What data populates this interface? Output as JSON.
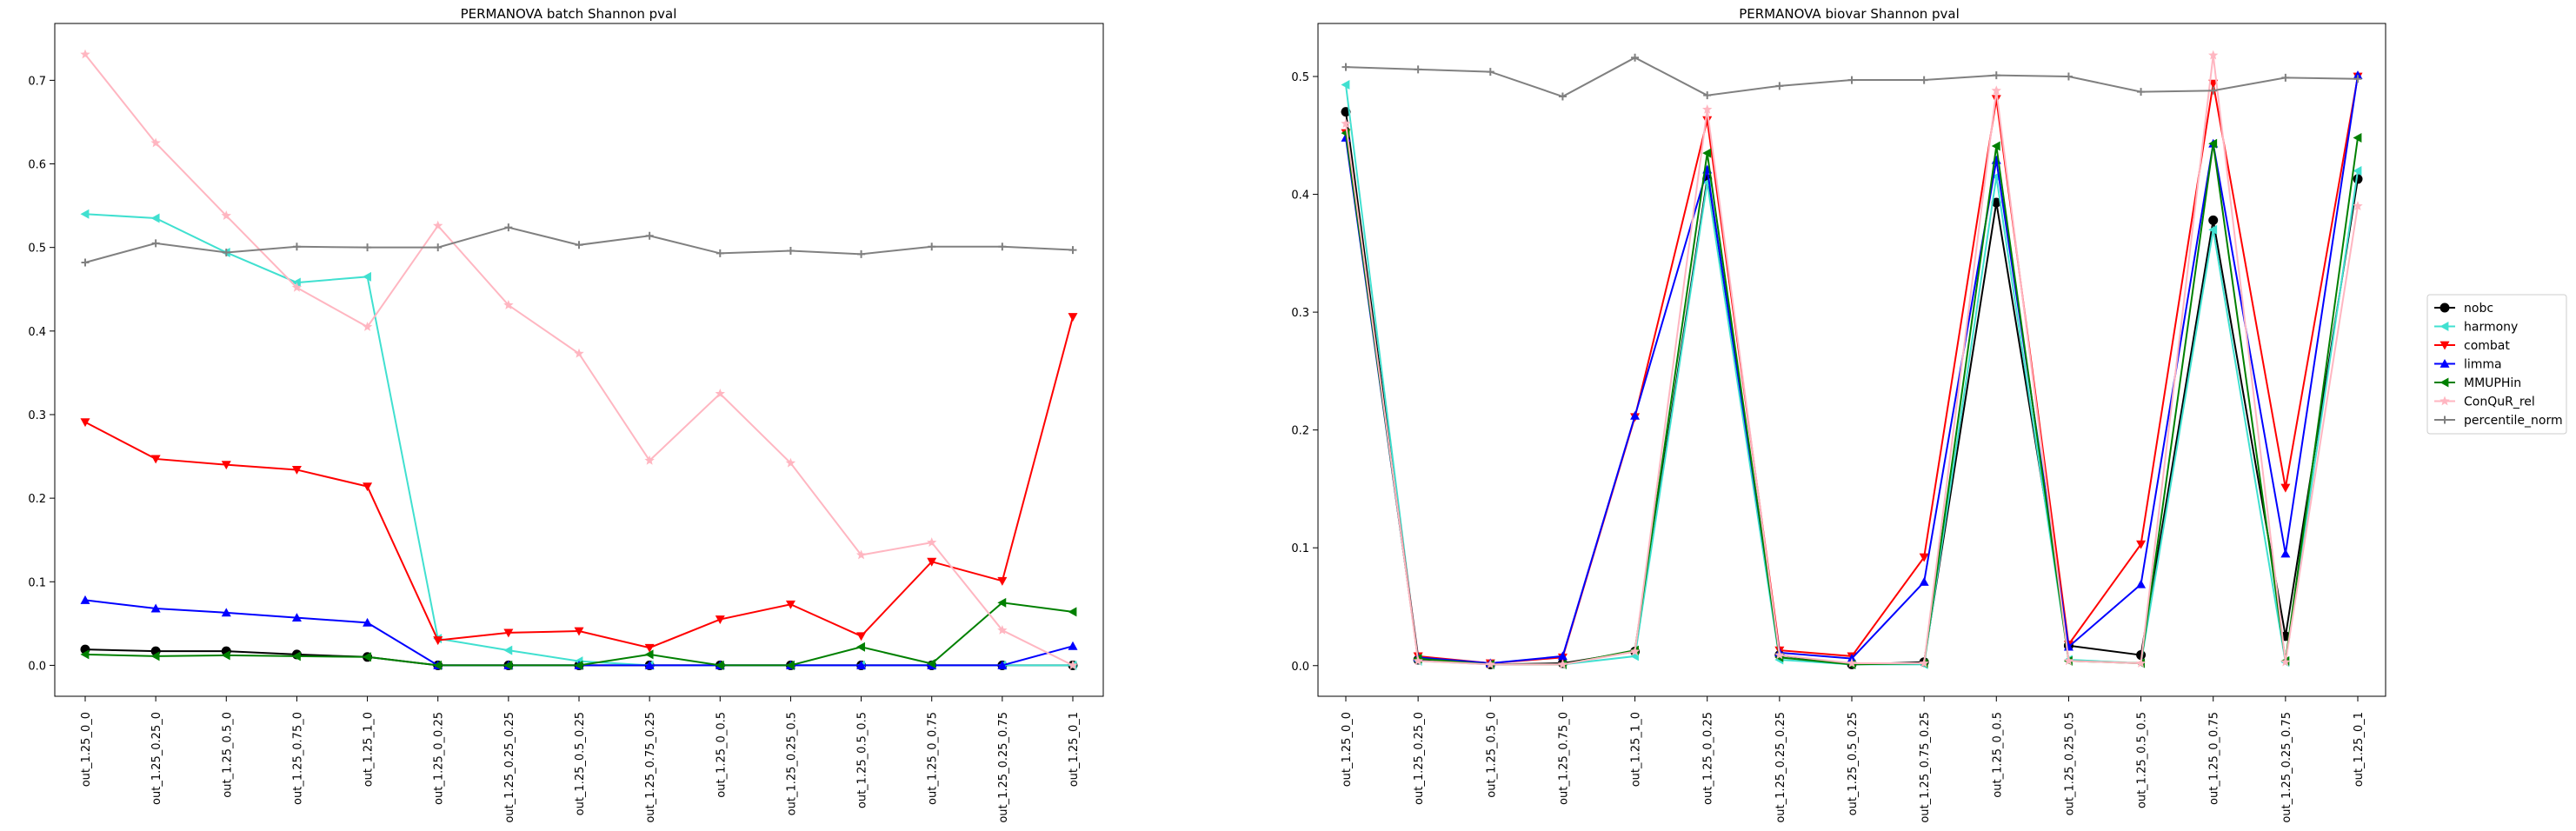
{
  "chart_data": [
    {
      "type": "line",
      "title": "PERMANOVA batch Shannon pval",
      "xlabel": "",
      "ylabel": "",
      "ylim": [
        -0.037,
        0.768
      ],
      "yticks": [
        0.0,
        0.1,
        0.2,
        0.3,
        0.4,
        0.5,
        0.6,
        0.7
      ],
      "ytick_labels": [
        "0.0",
        "0.1",
        "0.2",
        "0.3",
        "0.4",
        "0.5",
        "0.6",
        "0.7"
      ],
      "categories": [
        "out_1.25_0_0",
        "out_1.25_0.25_0",
        "out_1.25_0.5_0",
        "out_1.25_0.75_0",
        "out_1.25_1_0",
        "out_1.25_0_0.25",
        "out_1.25_0.25_0.25",
        "out_1.25_0.5_0.25",
        "out_1.25_0.75_0.25",
        "out_1.25_0_0.5",
        "out_1.25_0.25_0.5",
        "out_1.25_0.5_0.5",
        "out_1.25_0_0.75",
        "out_1.25_0.25_0.75",
        "out_1.25_0_1"
      ],
      "grid": false,
      "series": [
        {
          "name": "nobc",
          "color": "#000000",
          "marker": "circle",
          "values": [
            0.019,
            0.017,
            0.017,
            0.013,
            0.01,
            0.0,
            0.0,
            0.0,
            0.0,
            0.0,
            0.0,
            0.0,
            0.0,
            0.0,
            0.0
          ]
        },
        {
          "name": "harmony",
          "color": "#40e0d0",
          "marker": "triangle-left",
          "values": [
            0.54,
            0.535,
            0.494,
            0.458,
            0.465,
            0.032,
            0.018,
            0.005,
            0.0,
            0.0,
            0.0,
            0.0,
            0.0,
            0.0,
            0.0
          ]
        },
        {
          "name": "combat",
          "color": "#ff0000",
          "marker": "triangle-down",
          "values": [
            0.291,
            0.247,
            0.24,
            0.234,
            0.214,
            0.03,
            0.039,
            0.041,
            0.021,
            0.055,
            0.073,
            0.035,
            0.124,
            0.101,
            0.417
          ]
        },
        {
          "name": "limma",
          "color": "#0000ff",
          "marker": "triangle-up",
          "values": [
            0.078,
            0.068,
            0.063,
            0.057,
            0.051,
            0.0,
            0.0,
            0.0,
            0.0,
            0.0,
            0.0,
            0.0,
            0.0,
            0.0,
            0.023
          ]
        },
        {
          "name": "MMUPHin",
          "color": "#008000",
          "marker": "triangle-left",
          "values": [
            0.013,
            0.011,
            0.012,
            0.011,
            0.01,
            0.0,
            0.0,
            0.0,
            0.013,
            0.0,
            0.0,
            0.022,
            0.002,
            0.075,
            0.064
          ]
        },
        {
          "name": "ConQuR_rel",
          "color": "#ffb6c1",
          "marker": "star",
          "values": [
            0.731,
            0.625,
            0.538,
            0.452,
            0.405,
            0.526,
            0.431,
            0.373,
            0.245,
            0.325,
            0.242,
            0.132,
            0.147,
            0.042,
            0.0
          ]
        },
        {
          "name": "percentile_norm",
          "color": "#808080",
          "marker": "plus",
          "values": [
            0.482,
            0.505,
            0.494,
            0.501,
            0.5,
            0.5,
            0.524,
            0.503,
            0.514,
            0.493,
            0.496,
            0.492,
            0.501,
            0.501,
            0.497
          ]
        }
      ]
    },
    {
      "type": "line",
      "title": "PERMANOVA biovar Shannon pval",
      "xlabel": "",
      "ylabel": "",
      "ylim": [
        -0.026,
        0.545
      ],
      "yticks": [
        0.0,
        0.1,
        0.2,
        0.3,
        0.4,
        0.5
      ],
      "ytick_labels": [
        "0.0",
        "0.1",
        "0.2",
        "0.3",
        "0.4",
        "0.5"
      ],
      "categories": [
        "out_1.25_0_0",
        "out_1.25_0.25_0",
        "out_1.25_0.5_0",
        "out_1.25_0.75_0",
        "out_1.25_1_0",
        "out_1.25_0_0.25",
        "out_1.25_0.25_0.25",
        "out_1.25_0.5_0.25",
        "out_1.25_0.75_0.25",
        "out_1.25_0_0.5",
        "out_1.25_0.25_0.5",
        "out_1.25_0.5_0.5",
        "out_1.25_0_0.75",
        "out_1.25_0.25_0.75",
        "out_1.25_0_1"
      ],
      "grid": false,
      "legend_position": "right",
      "series": [
        {
          "name": "nobc",
          "color": "#000000",
          "marker": "circle",
          "values": [
            0.47,
            0.005,
            0.001,
            0.002,
            0.012,
            0.413,
            0.009,
            0.001,
            0.003,
            0.393,
            0.017,
            0.009,
            0.378,
            0.025,
            0.413
          ]
        },
        {
          "name": "harmony",
          "color": "#40e0d0",
          "marker": "triangle-left",
          "values": [
            0.493,
            0.004,
            0.001,
            0.001,
            0.008,
            0.41,
            0.005,
            0.001,
            0.001,
            0.415,
            0.005,
            0.002,
            0.37,
            0.003,
            0.42
          ]
        },
        {
          "name": "combat",
          "color": "#ff0000",
          "marker": "triangle-down",
          "values": [
            0.452,
            0.008,
            0.002,
            0.007,
            0.211,
            0.463,
            0.013,
            0.008,
            0.092,
            0.481,
            0.018,
            0.103,
            0.494,
            0.151,
            0.5
          ]
        },
        {
          "name": "limma",
          "color": "#0000ff",
          "marker": "triangle-up",
          "values": [
            0.448,
            0.007,
            0.002,
            0.008,
            0.212,
            0.421,
            0.011,
            0.006,
            0.071,
            0.429,
            0.016,
            0.069,
            0.443,
            0.095,
            0.501
          ]
        },
        {
          "name": "MMUPHin",
          "color": "#008000",
          "marker": "triangle-left",
          "values": [
            0.452,
            0.006,
            0.001,
            0.001,
            0.013,
            0.435,
            0.007,
            0.001,
            0.002,
            0.441,
            0.004,
            0.002,
            0.443,
            0.004,
            0.448
          ]
        },
        {
          "name": "ConQuR_rel",
          "color": "#ffb6c1",
          "marker": "star",
          "values": [
            0.46,
            0.004,
            0.001,
            0.001,
            0.012,
            0.472,
            0.009,
            0.002,
            0.002,
            0.488,
            0.004,
            0.002,
            0.518,
            0.003,
            0.39
          ]
        },
        {
          "name": "percentile_norm",
          "color": "#808080",
          "marker": "plus",
          "values": [
            0.508,
            0.506,
            0.504,
            0.483,
            0.516,
            0.484,
            0.492,
            0.497,
            0.497,
            0.501,
            0.5,
            0.487,
            0.488,
            0.499,
            0.498
          ]
        }
      ]
    }
  ],
  "legend": {
    "position": "right",
    "entries": [
      "nobc",
      "harmony",
      "combat",
      "limma",
      "MMUPHin",
      "ConQuR_rel",
      "percentile_norm"
    ]
  }
}
